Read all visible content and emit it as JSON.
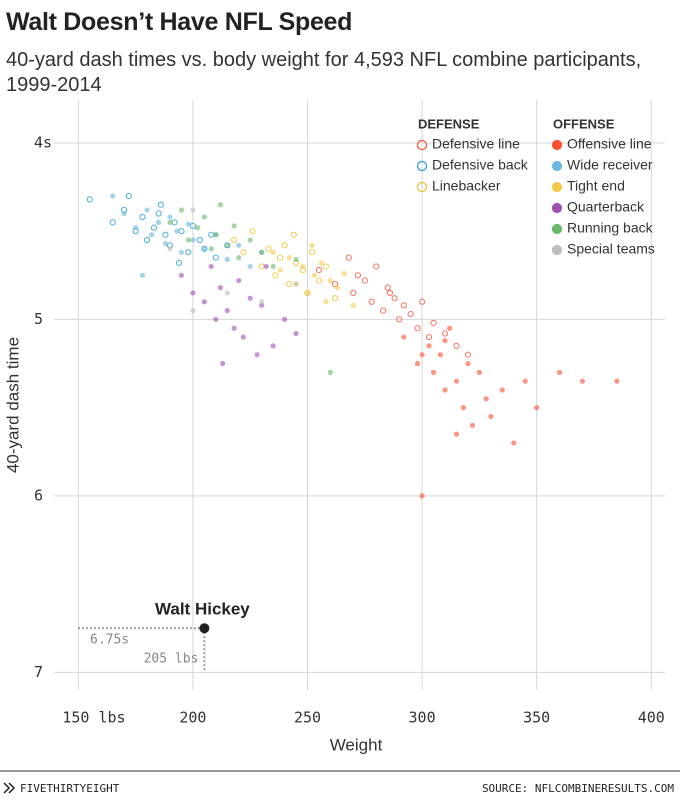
{
  "chart_data": {
    "type": "scatter",
    "title": "Walt Doesn’t Have NFL Speed",
    "subtitle": "40-yard dash times vs. body weight for 4,593 NFL combine participants, 1999-2014",
    "x_label": "Weight",
    "y_label": "40-yard dash time",
    "xlim": [
      142,
      406
    ],
    "ylim": [
      3.87,
      7.1
    ],
    "y_inverted": true,
    "grid": true,
    "xticks": [
      {
        "value": 150,
        "label": "150 lbs"
      },
      200,
      250,
      300,
      350,
      400
    ],
    "yticks": [
      {
        "value": 4,
        "label": "4s"
      },
      5,
      6,
      7
    ],
    "legend_position": "upper right",
    "legend_groups": [
      {
        "title": "DEFENSE",
        "filled": false
      },
      {
        "title": "OFFENSE",
        "filled": true
      }
    ],
    "series": [
      {
        "name": "Defensive line",
        "color": "#f4503a",
        "filled": false,
        "x": [
          255,
          262,
          268,
          270,
          275,
          278,
          280,
          283,
          285,
          288,
          290,
          292,
          295,
          298,
          300,
          303,
          305,
          310,
          315,
          320,
          272,
          286
        ],
        "y": [
          4.72,
          4.8,
          4.65,
          4.85,
          4.78,
          4.9,
          4.7,
          4.95,
          4.82,
          4.88,
          5.0,
          4.92,
          4.97,
          5.05,
          4.9,
          5.1,
          5.02,
          5.08,
          5.15,
          5.2,
          4.75,
          4.85
        ]
      },
      {
        "name": "Defensive back",
        "color": "#1f9bd6",
        "filled": false,
        "x": [
          155,
          165,
          170,
          175,
          178,
          180,
          183,
          185,
          188,
          190,
          192,
          195,
          198,
          200,
          203,
          205,
          208,
          210,
          215,
          172,
          186,
          194
        ],
        "y": [
          4.32,
          4.45,
          4.38,
          4.5,
          4.42,
          4.55,
          4.48,
          4.4,
          4.52,
          4.58,
          4.45,
          4.5,
          4.62,
          4.47,
          4.55,
          4.6,
          4.52,
          4.65,
          4.58,
          4.3,
          4.35,
          4.68
        ]
      },
      {
        "name": "Linebacker",
        "color": "#e8c020",
        "filled": false,
        "x": [
          218,
          222,
          226,
          230,
          233,
          236,
          238,
          240,
          242,
          245,
          248,
          250,
          252,
          255,
          258,
          262,
          244
        ],
        "y": [
          4.55,
          4.62,
          4.5,
          4.7,
          4.6,
          4.75,
          4.65,
          4.58,
          4.8,
          4.68,
          4.72,
          4.85,
          4.62,
          4.78,
          4.7,
          4.88,
          4.52
        ]
      },
      {
        "name": "Offensive line",
        "color": "#fc4f30",
        "filled": true,
        "x": [
          292,
          298,
          300,
          303,
          305,
          308,
          310,
          312,
          315,
          318,
          320,
          322,
          325,
          328,
          330,
          335,
          340,
          345,
          350,
          360,
          370,
          385,
          300,
          315,
          310
        ],
        "y": [
          5.1,
          5.25,
          6.0,
          5.15,
          5.3,
          5.2,
          5.4,
          5.05,
          5.35,
          5.5,
          5.25,
          5.6,
          5.3,
          5.45,
          5.55,
          5.4,
          5.7,
          5.35,
          5.5,
          5.3,
          5.35,
          5.35,
          5.2,
          5.65,
          5.12
        ]
      },
      {
        "name": "Wide receiver",
        "color": "#6bb6e0",
        "filled": true,
        "x": [
          165,
          170,
          175,
          180,
          182,
          185,
          188,
          190,
          193,
          195,
          198,
          200,
          205,
          210,
          215,
          220,
          225,
          230,
          178
        ],
        "y": [
          4.3,
          4.4,
          4.48,
          4.38,
          4.52,
          4.45,
          4.57,
          4.42,
          4.5,
          4.62,
          4.46,
          4.55,
          4.6,
          4.52,
          4.66,
          4.58,
          4.7,
          4.62,
          4.75
        ]
      },
      {
        "name": "Tight end",
        "color": "#f2c94c",
        "filled": true,
        "x": [
          235,
          238,
          242,
          245,
          248,
          250,
          253,
          256,
          258,
          260,
          263,
          266,
          270,
          252
        ],
        "y": [
          4.62,
          4.72,
          4.65,
          4.8,
          4.7,
          4.85,
          4.75,
          4.68,
          4.9,
          4.78,
          4.82,
          4.74,
          4.92,
          4.58
        ]
      },
      {
        "name": "Quarterback",
        "color": "#a050b4",
        "filled": true,
        "x": [
          195,
          200,
          205,
          208,
          210,
          212,
          215,
          218,
          220,
          222,
          225,
          228,
          230,
          235,
          240,
          245,
          213,
          232
        ],
        "y": [
          4.75,
          4.85,
          4.9,
          4.7,
          5.0,
          4.82,
          4.95,
          5.05,
          4.78,
          5.1,
          4.88,
          5.2,
          4.92,
          5.15,
          5.0,
          5.08,
          5.25,
          4.7
        ]
      },
      {
        "name": "Running back",
        "color": "#6ab86a",
        "filled": true,
        "x": [
          190,
          195,
          198,
          202,
          205,
          208,
          210,
          212,
          215,
          218,
          220,
          225,
          230,
          235,
          245,
          260
        ],
        "y": [
          4.45,
          4.38,
          4.55,
          4.48,
          4.42,
          4.6,
          4.52,
          4.35,
          4.58,
          4.47,
          4.65,
          4.55,
          4.62,
          4.7,
          4.66,
          5.3
        ]
      },
      {
        "name": "Special teams",
        "color": "#bdbdbd",
        "filled": true,
        "x": [
          190,
          200,
          215,
          230,
          245,
          200
        ],
        "y": [
          4.6,
          4.95,
          4.85,
          4.9,
          4.8,
          4.38
        ]
      }
    ],
    "highlight": {
      "label": "Walt Hickey",
      "x": 205,
      "y": 6.75,
      "x_label": "205 lbs",
      "y_label": "6.75s"
    },
    "brand": "FIVETHIRTYEIGHT",
    "source": "SOURCE: NFLCOMBINERESULTS.COM"
  }
}
